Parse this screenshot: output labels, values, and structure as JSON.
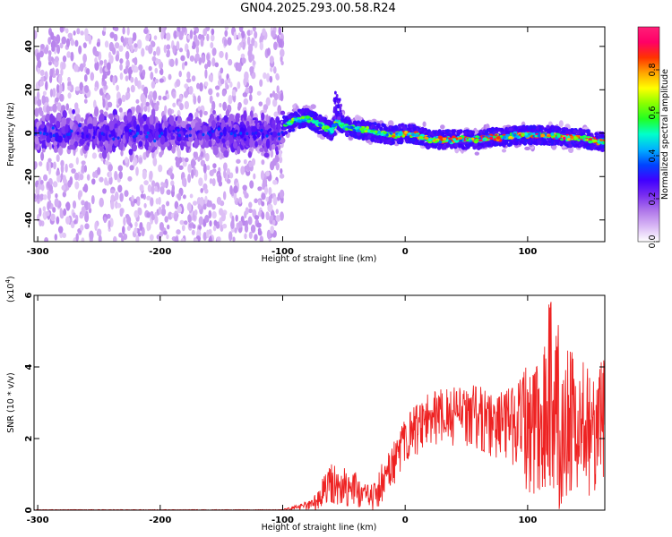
{
  "page_title": "GN04.2025.293.00.58.R24",
  "chart_data": [
    {
      "type": "heatmap",
      "title": "GN04.2025.293.00.58.R24",
      "xlabel": "Height of straight line (km)",
      "ylabel": "Frequency (Hz)",
      "xlim": [
        -303,
        163
      ],
      "ylim": [
        -50,
        49
      ],
      "xticks": [
        -300,
        -200,
        -100,
        0,
        100
      ],
      "xtick_labels": [
        "-300",
        "-200",
        "-100",
        "0",
        "100"
      ],
      "yticks": [
        -40,
        -20,
        0,
        20,
        40
      ],
      "ytick_labels": [
        "-40",
        "-20",
        "0",
        "20",
        "40"
      ],
      "colorbar": {
        "label": "Normalized spectral amplitude",
        "range": [
          0,
          1
        ],
        "ticks": [
          0.0,
          0.2,
          0.4,
          0.6,
          0.8
        ],
        "tick_labels": [
          "0.0",
          "0.2",
          "0.4",
          "0.6",
          "0.8"
        ],
        "colors": [
          "#ffffff",
          "#d9b8f5",
          "#b077ea",
          "#7a2ff0",
          "#4000ff",
          "#0044ff",
          "#00b0ff",
          "#00ffcc",
          "#22ff22",
          "#88ff00",
          "#ffff00",
          "#ffa500",
          "#ff3300",
          "#ff0066",
          "#ff1e78"
        ]
      },
      "ridge": {
        "description": "dominant frequency track (Hz) vs height (km)",
        "x": [
          -100,
          -90,
          -80,
          -70,
          -60,
          -55,
          -50,
          -40,
          -30,
          -20,
          -10,
          0,
          10,
          20,
          30,
          40,
          50,
          60,
          70,
          80,
          90,
          100,
          110,
          120,
          130,
          140,
          150,
          160
        ],
        "y": [
          3,
          6,
          7,
          4,
          1,
          6,
          3,
          2,
          1,
          0,
          -1,
          0,
          -1,
          -3,
          -3,
          -3,
          -3,
          -3,
          -2,
          -2,
          -1,
          -1,
          -1,
          -1,
          -2,
          -2,
          -3,
          -4
        ]
      }
    },
    {
      "type": "line",
      "xlabel": "Height of straight line (km)",
      "ylabel": "SNR (10 * v/v)",
      "multiplier_label": "(x10",
      "multiplier_exp": "4",
      "xlim": [
        -303,
        163
      ],
      "ylim": [
        0,
        6
      ],
      "xticks": [
        -300,
        -200,
        -100,
        0,
        100
      ],
      "xtick_labels": [
        "-300",
        "-200",
        "-100",
        "0",
        "100"
      ],
      "yticks": [
        0,
        2,
        4,
        6
      ],
      "ytick_labels": [
        "0",
        "2",
        "4",
        "6"
      ],
      "color": "#ee2222",
      "envelope": {
        "description": "approximate SNR envelope (x10^4) vs height (km); trace oscillates between low and high",
        "x": [
          -303,
          -100,
          -75,
          -70,
          -60,
          -50,
          -40,
          -35,
          -25,
          -20,
          -10,
          0,
          10,
          20,
          40,
          60,
          80,
          90,
          100,
          110,
          115,
          120,
          125,
          130,
          140,
          150,
          163
        ],
        "low": [
          0,
          0,
          0,
          0,
          0.2,
          0.1,
          0.1,
          0,
          0,
          0.1,
          0.6,
          1.2,
          1.5,
          1.8,
          1.8,
          1.6,
          1.4,
          1.2,
          0.5,
          0.3,
          0.1,
          0,
          0,
          0.2,
          0.3,
          0.4,
          0.5
        ],
        "high": [
          0.02,
          0.02,
          0.3,
          0.8,
          1.3,
          1.2,
          1.1,
          0.7,
          0.8,
          1.3,
          1.9,
          2.6,
          3.0,
          3.3,
          3.5,
          3.5,
          3.4,
          3.6,
          4.2,
          4.5,
          5.6,
          6.0,
          5.2,
          4.8,
          4.3,
          4.0,
          4.2
        ]
      }
    }
  ]
}
